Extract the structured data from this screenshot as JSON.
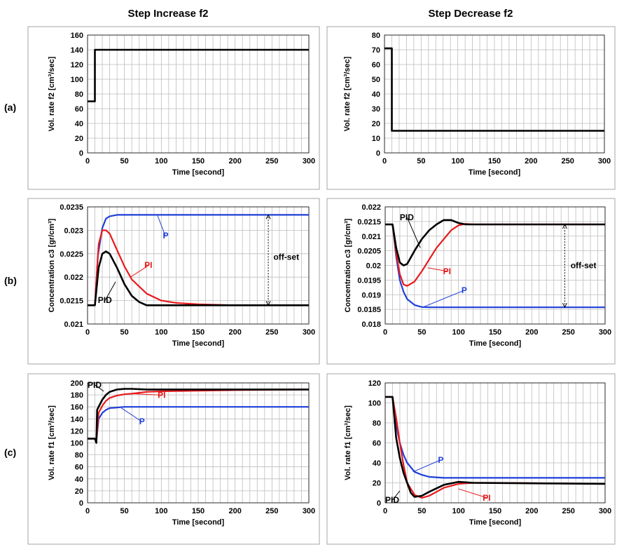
{
  "page": {
    "col_headers": [
      "Step Increase f2",
      "Step Decrease f2"
    ],
    "row_labels": [
      "(a)",
      "(b)",
      "(c)"
    ]
  },
  "colors": {
    "P": "#1f3fd9",
    "PI": "#e8191b",
    "PID": "#000000",
    "grid": "#bdbdbd",
    "frame": "#a6a6a6"
  },
  "chart_data": [
    {
      "id": "a-increase",
      "type": "line",
      "xlabel": "Time [second]",
      "ylabel": "Vol. rate f2 [cm³/sec]",
      "xlim": [
        0,
        300
      ],
      "ylim": [
        0,
        160
      ],
      "xticks": [
        0,
        50,
        100,
        150,
        200,
        250,
        300
      ],
      "yticks": [
        0,
        20,
        40,
        60,
        80,
        100,
        120,
        140,
        160
      ],
      "grid": true,
      "series": [
        {
          "key": "PID",
          "x": [
            0,
            10,
            10,
            11,
            300
          ],
          "y": [
            70,
            70,
            140,
            140,
            140
          ]
        }
      ],
      "annotations": []
    },
    {
      "id": "a-decrease",
      "type": "line",
      "xlabel": "Time [second]",
      "ylabel": "Vol. rate f2 [cm³/sec]",
      "xlim": [
        0,
        300
      ],
      "ylim": [
        0,
        80
      ],
      "xticks": [
        0,
        50,
        100,
        150,
        200,
        250,
        300
      ],
      "yticks": [
        0,
        10,
        20,
        30,
        40,
        50,
        60,
        70,
        80
      ],
      "grid": true,
      "series": [
        {
          "key": "PID",
          "x": [
            0,
            10,
            10,
            11,
            300
          ],
          "y": [
            71,
            71,
            15,
            15,
            15
          ]
        }
      ],
      "annotations": []
    },
    {
      "id": "b-increase",
      "type": "line",
      "xlabel": "Time [second]",
      "ylabel": "Concentration c3 [gr/cm³]",
      "xlim": [
        0,
        300
      ],
      "ylim": [
        0.021,
        0.0235
      ],
      "xticks": [
        0,
        50,
        100,
        150,
        200,
        250,
        300
      ],
      "yticks": [
        0.021,
        0.0215,
        0.022,
        0.0225,
        0.023,
        0.0235
      ],
      "ytick_labels": [
        "0.021",
        "0.0215",
        "0.022",
        "0.0225",
        "0.023",
        "0.0235"
      ],
      "grid": true,
      "series": [
        {
          "key": "P",
          "x": [
            0,
            10,
            14,
            20,
            25,
            30,
            40,
            50,
            300
          ],
          "y": [
            0.0214,
            0.0214,
            0.02245,
            0.02305,
            0.02325,
            0.0233,
            0.02333,
            0.02333,
            0.02333
          ]
        },
        {
          "key": "PI",
          "x": [
            0,
            10,
            15,
            20,
            25,
            30,
            40,
            50,
            60,
            80,
            100,
            120,
            150,
            200,
            300
          ],
          "y": [
            0.0214,
            0.0214,
            0.0227,
            0.023,
            0.023,
            0.02293,
            0.02258,
            0.02223,
            0.02195,
            0.02165,
            0.0215,
            0.02145,
            0.02142,
            0.0214,
            0.0214
          ]
        },
        {
          "key": "PID",
          "x": [
            0,
            10,
            15,
            20,
            25,
            30,
            40,
            50,
            60,
            70,
            80,
            100,
            300
          ],
          "y": [
            0.0214,
            0.0214,
            0.0222,
            0.0225,
            0.02255,
            0.0225,
            0.0222,
            0.02185,
            0.0216,
            0.02147,
            0.0214,
            0.0214,
            0.0214
          ]
        }
      ],
      "annotations": [
        {
          "text": "P",
          "key": "P",
          "tx": 102,
          "ty": 0.02283,
          "ax": 95,
          "ay": 0.02331
        },
        {
          "text": "PI",
          "key": "PI",
          "tx": 77,
          "ty": 0.0222,
          "ax": 58,
          "ay": 0.022
        },
        {
          "text": "PID",
          "key": "PID",
          "tx": 14,
          "ty": 0.02145,
          "ax": 38,
          "ay": 0.0219
        },
        {
          "text": "off-set",
          "key": "PID",
          "tx": 252,
          "ty": 0.02243,
          "range": [
            0.0214,
            0.02333
          ],
          "at": 245
        }
      ]
    },
    {
      "id": "b-decrease",
      "type": "line",
      "xlabel": "Time [second]",
      "ylabel": "Concentration c3 [gr/cm³]",
      "xlim": [
        0,
        300
      ],
      "ylim": [
        0.018,
        0.022
      ],
      "xticks": [
        0,
        50,
        100,
        150,
        200,
        250,
        300
      ],
      "yticks": [
        0.018,
        0.0185,
        0.019,
        0.0195,
        0.02,
        0.0205,
        0.021,
        0.0215,
        0.022
      ],
      "ytick_labels": [
        "0.018",
        "0.0185",
        "0.019",
        "0.0195",
        "0.02",
        "0.0205",
        "0.021",
        "0.0215",
        "0.022"
      ],
      "grid": true,
      "series": [
        {
          "key": "P",
          "x": [
            0,
            10,
            15,
            20,
            25,
            30,
            40,
            50,
            60,
            300
          ],
          "y": [
            0.0214,
            0.0214,
            0.0203,
            0.0195,
            0.0191,
            0.01885,
            0.01865,
            0.01858,
            0.01857,
            0.01857
          ]
        },
        {
          "key": "PI",
          "x": [
            0,
            10,
            15,
            20,
            25,
            30,
            40,
            50,
            60,
            70,
            80,
            90,
            100,
            110,
            120,
            300
          ],
          "y": [
            0.0214,
            0.0214,
            0.0204,
            0.0197,
            0.01935,
            0.0193,
            0.01945,
            0.0198,
            0.0202,
            0.0206,
            0.0209,
            0.0212,
            0.02137,
            0.02142,
            0.0214,
            0.0214
          ]
        },
        {
          "key": "PID",
          "x": [
            0,
            10,
            15,
            20,
            25,
            30,
            40,
            50,
            60,
            70,
            80,
            90,
            100,
            110,
            300
          ],
          "y": [
            0.0214,
            0.0214,
            0.0206,
            0.0201,
            0.02,
            0.02005,
            0.0205,
            0.0209,
            0.0212,
            0.0214,
            0.02155,
            0.02155,
            0.02145,
            0.0214,
            0.0214
          ]
        }
      ],
      "annotations": [
        {
          "text": "PID",
          "key": "PID",
          "tx": 20,
          "ty": 0.02154,
          "ax": 48,
          "ay": 0.0206
        },
        {
          "text": "PI",
          "key": "PI",
          "tx": 79,
          "ty": 0.0197,
          "ax": 58,
          "ay": 0.01992
        },
        {
          "text": "P",
          "key": "P",
          "tx": 104,
          "ty": 0.01905,
          "ax": 52,
          "ay": 0.01858
        },
        {
          "text": "off-set",
          "key": "PID",
          "tx": 253,
          "ty": 0.02,
          "range": [
            0.01857,
            0.0214
          ],
          "at": 245
        }
      ]
    },
    {
      "id": "c-increase",
      "type": "line",
      "xlabel": "Time [second]",
      "ylabel": "Vol. rate f1 [cm³/sec]",
      "xlim": [
        0,
        300
      ],
      "ylim": [
        0,
        200
      ],
      "xticks": [
        0,
        50,
        100,
        150,
        200,
        250,
        300
      ],
      "yticks": [
        0,
        20,
        40,
        60,
        80,
        100,
        120,
        140,
        160,
        180,
        200
      ],
      "grid": true,
      "series": [
        {
          "key": "P",
          "x": [
            0,
            10,
            12,
            15,
            20,
            25,
            30,
            40,
            50,
            300
          ],
          "y": [
            107,
            107,
            103,
            140,
            150,
            155,
            158,
            159,
            160,
            160
          ]
        },
        {
          "key": "PI",
          "x": [
            0,
            10,
            12,
            15,
            20,
            25,
            30,
            40,
            50,
            60,
            80,
            100,
            150,
            200,
            300
          ],
          "y": [
            107,
            107,
            103,
            150,
            162,
            170,
            175,
            179,
            181,
            182,
            185,
            186,
            187,
            188,
            189
          ]
        },
        {
          "key": "PID",
          "x": [
            0,
            10,
            12,
            13,
            15,
            20,
            25,
            30,
            40,
            50,
            60,
            80,
            300
          ],
          "y": [
            107,
            107,
            100,
            155,
            160,
            172,
            180,
            185,
            189,
            190,
            190,
            189,
            189
          ]
        }
      ],
      "annotations": [
        {
          "text": "PID",
          "key": "PID",
          "tx": 0,
          "ty": 192,
          "ax": 22,
          "ay": 186
        },
        {
          "text": "PI",
          "key": "PI",
          "tx": 95,
          "ty": 175,
          "ax": 58,
          "ay": 182
        },
        {
          "text": "P",
          "key": "P",
          "tx": 70,
          "ty": 131,
          "ax": 46,
          "ay": 158
        }
      ]
    },
    {
      "id": "c-decrease",
      "type": "line",
      "xlabel": "Time [second]",
      "ylabel": "Vol. rate f1 [cm³/sec]",
      "xlim": [
        0,
        300
      ],
      "ylim": [
        0,
        120
      ],
      "xticks": [
        0,
        50,
        100,
        150,
        200,
        250,
        300
      ],
      "yticks": [
        0,
        20,
        40,
        60,
        80,
        100,
        120
      ],
      "grid": true,
      "series": [
        {
          "key": "P",
          "x": [
            0,
            10,
            15,
            20,
            25,
            30,
            40,
            50,
            60,
            80,
            300
          ],
          "y": [
            106,
            106,
            78,
            60,
            48,
            40,
            31,
            28,
            26,
            25,
            25
          ]
        },
        {
          "key": "PI",
          "x": [
            0,
            10,
            15,
            20,
            25,
            30,
            40,
            50,
            60,
            70,
            80,
            100,
            120,
            150,
            300
          ],
          "y": [
            106,
            106,
            85,
            60,
            38,
            20,
            8,
            5,
            7,
            11,
            15,
            19,
            20,
            20,
            19
          ]
        },
        {
          "key": "PID",
          "x": [
            0,
            10,
            15,
            20,
            25,
            30,
            35,
            40,
            50,
            60,
            80,
            100,
            120,
            300
          ],
          "y": [
            106,
            106,
            65,
            45,
            30,
            20,
            10,
            6,
            7,
            11,
            18,
            21,
            20,
            19
          ]
        }
      ],
      "annotations": [
        {
          "text": "P",
          "key": "P",
          "tx": 72,
          "ty": 40,
          "ax": 38,
          "ay": 31
        },
        {
          "text": "PID",
          "key": "PID",
          "tx": 0,
          "ty": 0,
          "ax": 20,
          "ay": 12
        },
        {
          "text": "PI",
          "key": "PI",
          "tx": 133,
          "ty": 2,
          "ax": 100,
          "ay": 14
        }
      ]
    }
  ]
}
